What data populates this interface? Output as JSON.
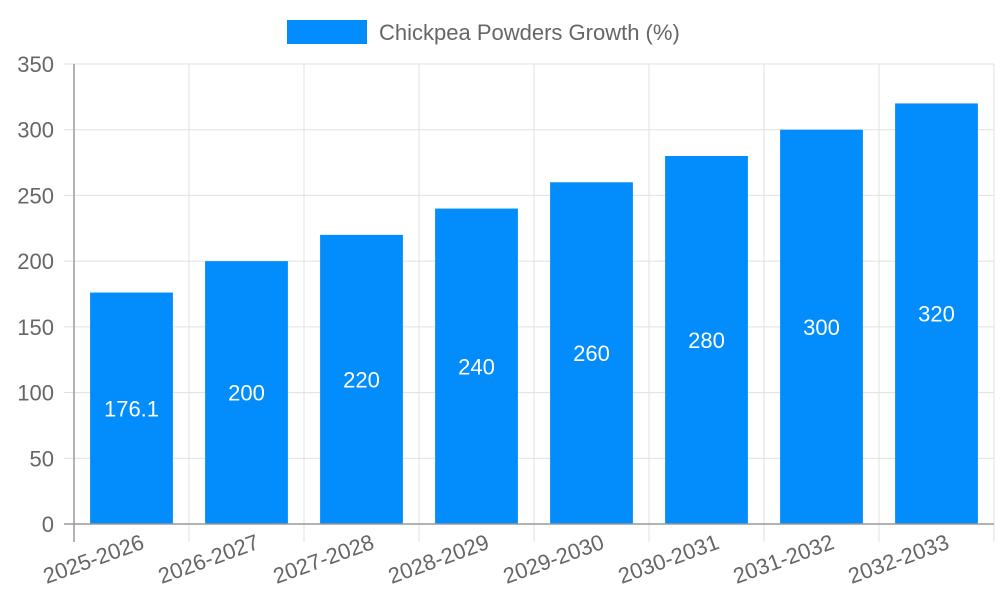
{
  "chart_data": {
    "type": "bar",
    "title": "",
    "xlabel": "",
    "ylabel": "",
    "categories": [
      "2025-2026",
      "2026-2027",
      "2027-2028",
      "2028-2029",
      "2029-2030",
      "2030-2031",
      "2031-2032",
      "2032-2033"
    ],
    "series": [
      {
        "name": "Chickpea Powders Growth (%)",
        "values": [
          176.1,
          200,
          220,
          240,
          260,
          280,
          300,
          320
        ],
        "color": "#038cfc"
      }
    ],
    "data_labels": [
      "176.1",
      "200",
      "220",
      "240",
      "260",
      "280",
      "300",
      "320"
    ],
    "ylim": [
      0,
      350
    ],
    "yticks": [
      "0",
      "50",
      "100",
      "150",
      "200",
      "250",
      "300",
      "350"
    ],
    "grid": true,
    "legend_position": "top"
  },
  "legend": {
    "label": "Chickpea Powders Growth (%)",
    "color": "#038cfc"
  },
  "colors": {
    "bar": "#038cfc",
    "grid": "#e0e0e0",
    "axis": "#999999",
    "text": "#666666",
    "bar_label": "#ffffff"
  }
}
